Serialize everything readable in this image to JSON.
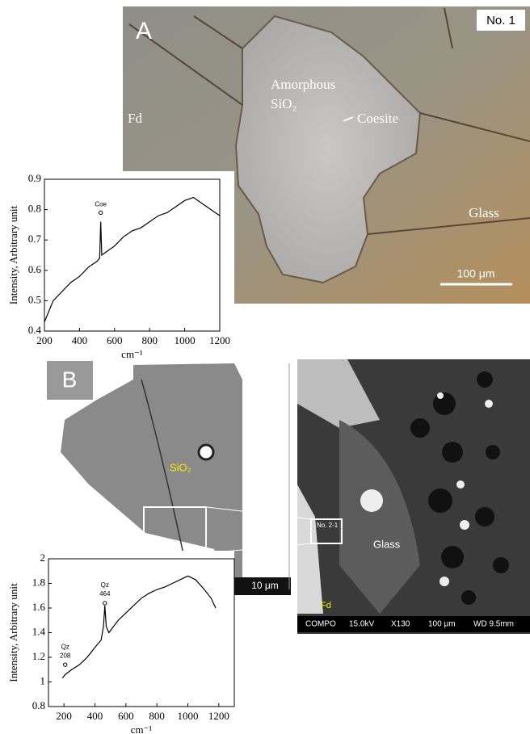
{
  "panel_a": {
    "label": "A",
    "sample": "No. 1",
    "phase_1": "Amorphous",
    "phase_2": "SiO₂",
    "host": "Fd",
    "mineral": "Coesite",
    "matrix": "Glass",
    "scale": "100 μm"
  },
  "panel_b": {
    "label": "B",
    "phase": "SiO₂",
    "scale_left": "10 μm",
    "spot": "No. 2-1",
    "matrix": "Glass",
    "host": "Fd",
    "sem_info": [
      "COMPO",
      "15.0kV",
      "X130",
      "100 μm",
      "WD 9.5mm"
    ]
  },
  "chart_data": [
    {
      "type": "line",
      "x_label": "cm⁻¹",
      "y_label": "Intensity, Arbitrary unit",
      "x": [
        200,
        250,
        300,
        350,
        400,
        450,
        500,
        515,
        521,
        527,
        550,
        600,
        650,
        700,
        750,
        800,
        850,
        900,
        950,
        1000,
        1050,
        1100,
        1150,
        1200
      ],
      "series": [
        {
          "color": "#000000",
          "values": [
            0.43,
            0.5,
            0.53,
            0.56,
            0.58,
            0.61,
            0.63,
            0.64,
            0.76,
            0.65,
            0.66,
            0.68,
            0.71,
            0.73,
            0.74,
            0.76,
            0.78,
            0.79,
            0.81,
            0.83,
            0.84,
            0.82,
            0.8,
            0.78
          ]
        }
      ],
      "xlim": [
        200,
        1200
      ],
      "ylim": [
        0.4,
        0.9
      ],
      "xticks": [
        200,
        400,
        600,
        800,
        1000,
        1200
      ],
      "yticks": [
        0.4,
        0.5,
        0.6,
        0.7,
        0.8,
        0.9
      ],
      "annotations": [
        {
          "text": "Coe",
          "x": 521,
          "y": 0.79
        }
      ]
    },
    {
      "type": "line",
      "x_label": "cm⁻¹",
      "y_label": "Intensity, Arbitrary unit",
      "x": [
        190,
        208,
        250,
        300,
        350,
        400,
        440,
        455,
        464,
        473,
        490,
        550,
        600,
        650,
        700,
        750,
        800,
        850,
        900,
        950,
        1000,
        1050,
        1100,
        1150,
        1180
      ],
      "series": [
        {
          "color": "#000000",
          "values": [
            1.03,
            1.06,
            1.1,
            1.14,
            1.2,
            1.28,
            1.34,
            1.45,
            1.62,
            1.45,
            1.4,
            1.5,
            1.56,
            1.62,
            1.68,
            1.72,
            1.75,
            1.77,
            1.8,
            1.83,
            1.86,
            1.83,
            1.76,
            1.68,
            1.6
          ]
        }
      ],
      "xlim": [
        100,
        1300
      ],
      "ylim": [
        0.8,
        2
      ],
      "xticks": [
        200,
        400,
        600,
        800,
        1000,
        1200
      ],
      "yticks": [
        0.8,
        1,
        1.2,
        1.4,
        1.6,
        1.8,
        2
      ],
      "annotations": [
        {
          "text": "Qz",
          "sub": "464",
          "x": 464,
          "y": 1.64
        },
        {
          "text": "Qz",
          "sub": "208",
          "x": 208,
          "y": 1.14
        }
      ]
    }
  ]
}
